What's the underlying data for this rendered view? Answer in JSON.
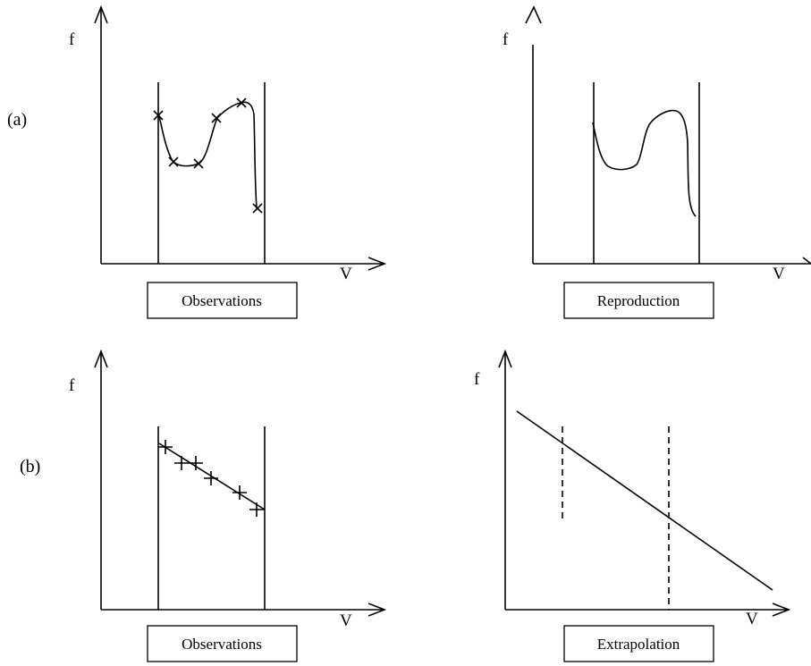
{
  "row_labels": {
    "a": "(a)",
    "b": "(b)"
  },
  "panels": {
    "a_observations": {
      "y_axis": "f",
      "x_axis": "V",
      "caption": "Observations"
    },
    "a_reproduction": {
      "y_axis": "f",
      "x_axis": "V",
      "caption": "Reproduction"
    },
    "b_observations": {
      "y_axis": "f",
      "x_axis": "V",
      "caption": "Observations"
    },
    "b_extrapolation": {
      "y_axis": "f",
      "x_axis": "V",
      "caption": "Extrapolation"
    }
  },
  "colors": {
    "ink": "#000000",
    "background": "#ffffff"
  }
}
